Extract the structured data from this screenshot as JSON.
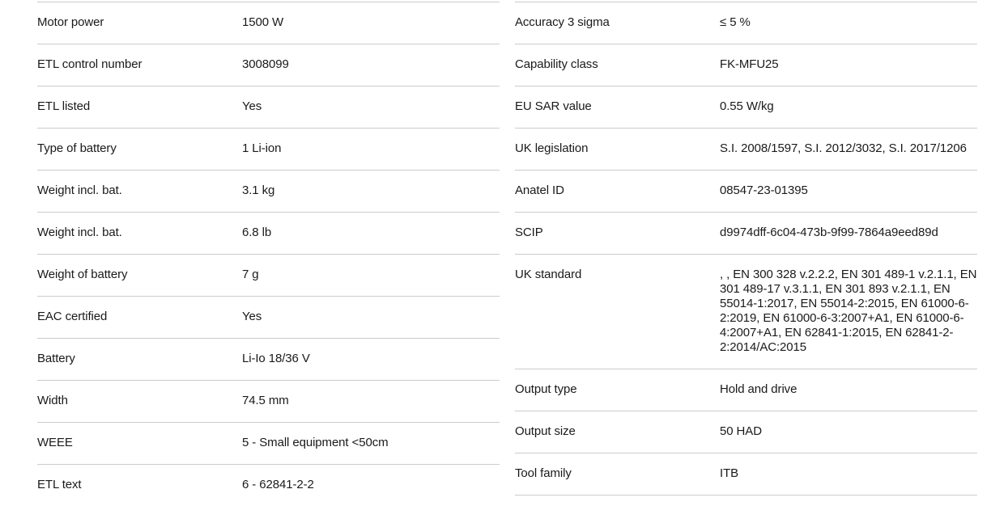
{
  "page": {
    "background": "#ffffff",
    "text_color": "#1a1a1a",
    "divider_color": "#cccccc"
  },
  "spec_tables": {
    "left": {
      "rows": [
        {
          "label": "Motor power",
          "value": "1500 W"
        },
        {
          "label": "ETL control number",
          "value": "3008099"
        },
        {
          "label": "ETL listed",
          "value": "Yes"
        },
        {
          "label": "Type of battery",
          "value": "1 Li-ion"
        },
        {
          "label": "Weight incl. bat.",
          "value": "3.1 kg"
        },
        {
          "label": "Weight incl. bat.",
          "value": "6.8 lb"
        },
        {
          "label": "Weight of battery",
          "value": "7 g"
        },
        {
          "label": "EAC certified",
          "value": "Yes"
        },
        {
          "label": "Battery",
          "value": "Li-Io 18/36 V"
        },
        {
          "label": "Width",
          "value": "74.5 mm"
        },
        {
          "label": "WEEE",
          "value": "5 - Small equipment <50cm"
        },
        {
          "label": "ETL text",
          "value": "6 - 62841-2-2"
        }
      ]
    },
    "right": {
      "rows": [
        {
          "label": "Accuracy 3 sigma",
          "value": "≤ 5 %"
        },
        {
          "label": "Capability class",
          "value": "FK-MFU25"
        },
        {
          "label": "EU SAR value",
          "value": "0.55 W/kg"
        },
        {
          "label": "UK legislation",
          "value": "S.I. 2008/1597, S.I. 2012/3032, S.I. 2017/1206"
        },
        {
          "label": "Anatel ID",
          "value": "08547-23-01395"
        },
        {
          "label": "SCIP",
          "value": "d9974dff-6c04-473b-9f99-7864a9eed89d"
        },
        {
          "label": "UK standard",
          "value": ", , EN 300 328 v.2.2.2, EN 301 489-1 v.2.1.1, EN 301 489-17 v.3.1.1, EN 301 893 v.2.1.1, EN 55014-1:2017, EN 55014-2:2015, EN 61000-6-2:2019, EN 61000-6-3:2007+A1, EN 61000-6-4:2007+A1, EN 62841-1:2015, EN 62841-2-2:2014/AC:2015"
        },
        {
          "label": "Output type",
          "value": "Hold and drive"
        },
        {
          "label": "Output size",
          "value": "50 HAD"
        },
        {
          "label": "Tool family",
          "value": "ITB"
        }
      ]
    }
  }
}
